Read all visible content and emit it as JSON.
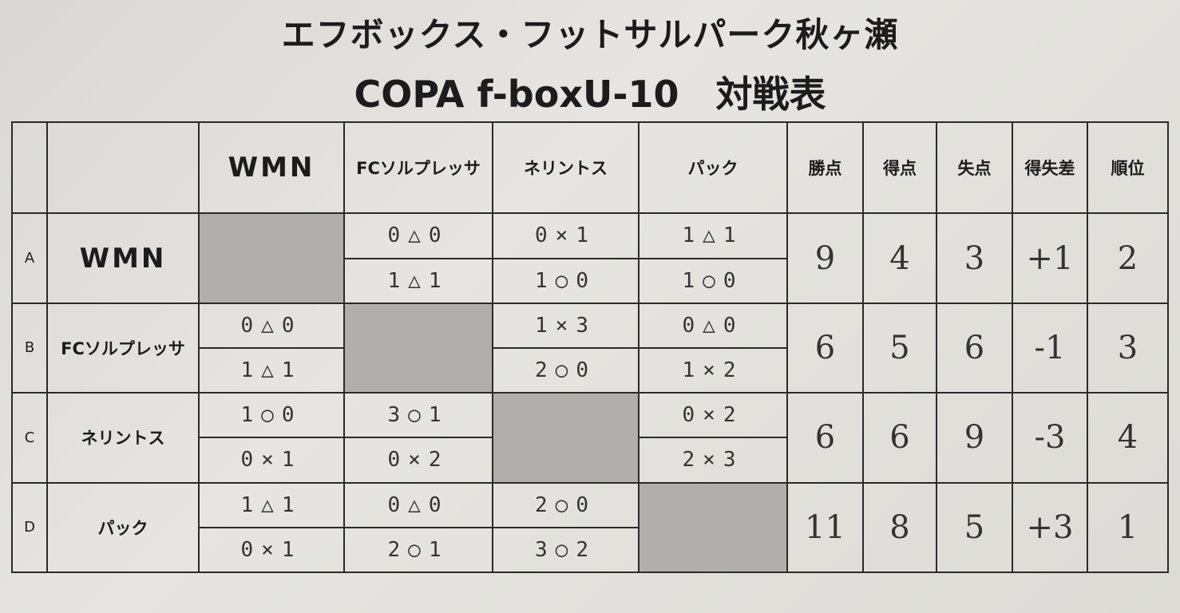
{
  "title": "エフボックス・フットサルパーク秋ヶ瀬",
  "subtitle": "COPA f-boxU-10　対戦表",
  "columns": {
    "teams": [
      "WMN",
      "FCソルプレッサ",
      "ネリントス",
      "パック"
    ],
    "stats": [
      "勝点",
      "得点",
      "失点",
      "得失差",
      "順位"
    ]
  },
  "rows": [
    {
      "label": "A",
      "team": "WMN",
      "scores": [
        null,
        [
          "0△0",
          "1△1"
        ],
        [
          "0×1",
          "1○0"
        ],
        [
          "1△1",
          "1○0"
        ]
      ],
      "stats": [
        "9",
        "4",
        "3",
        "+1",
        "2"
      ]
    },
    {
      "label": "B",
      "team": "FCソルプレッサ",
      "scores": [
        [
          "0△0",
          "1△1"
        ],
        null,
        [
          "1×3",
          "2○0"
        ],
        [
          "0△0",
          "1×2"
        ]
      ],
      "stats": [
        "6",
        "5",
        "6",
        "-1",
        "3"
      ]
    },
    {
      "label": "C",
      "team": "ネリントス",
      "scores": [
        [
          "1○0",
          "0×1"
        ],
        [
          "3○1",
          "0×2"
        ],
        null,
        [
          "0×2",
          "2×3"
        ]
      ],
      "stats": [
        "6",
        "6",
        "9",
        "-3",
        "4"
      ]
    },
    {
      "label": "D",
      "team": "パック",
      "scores": [
        [
          "1△1",
          "0×1"
        ],
        [
          "0△0",
          "2○1"
        ],
        [
          "2○0",
          "3○2"
        ],
        null
      ],
      "stats": [
        "11",
        "8",
        "5",
        "+3",
        "1"
      ]
    }
  ]
}
